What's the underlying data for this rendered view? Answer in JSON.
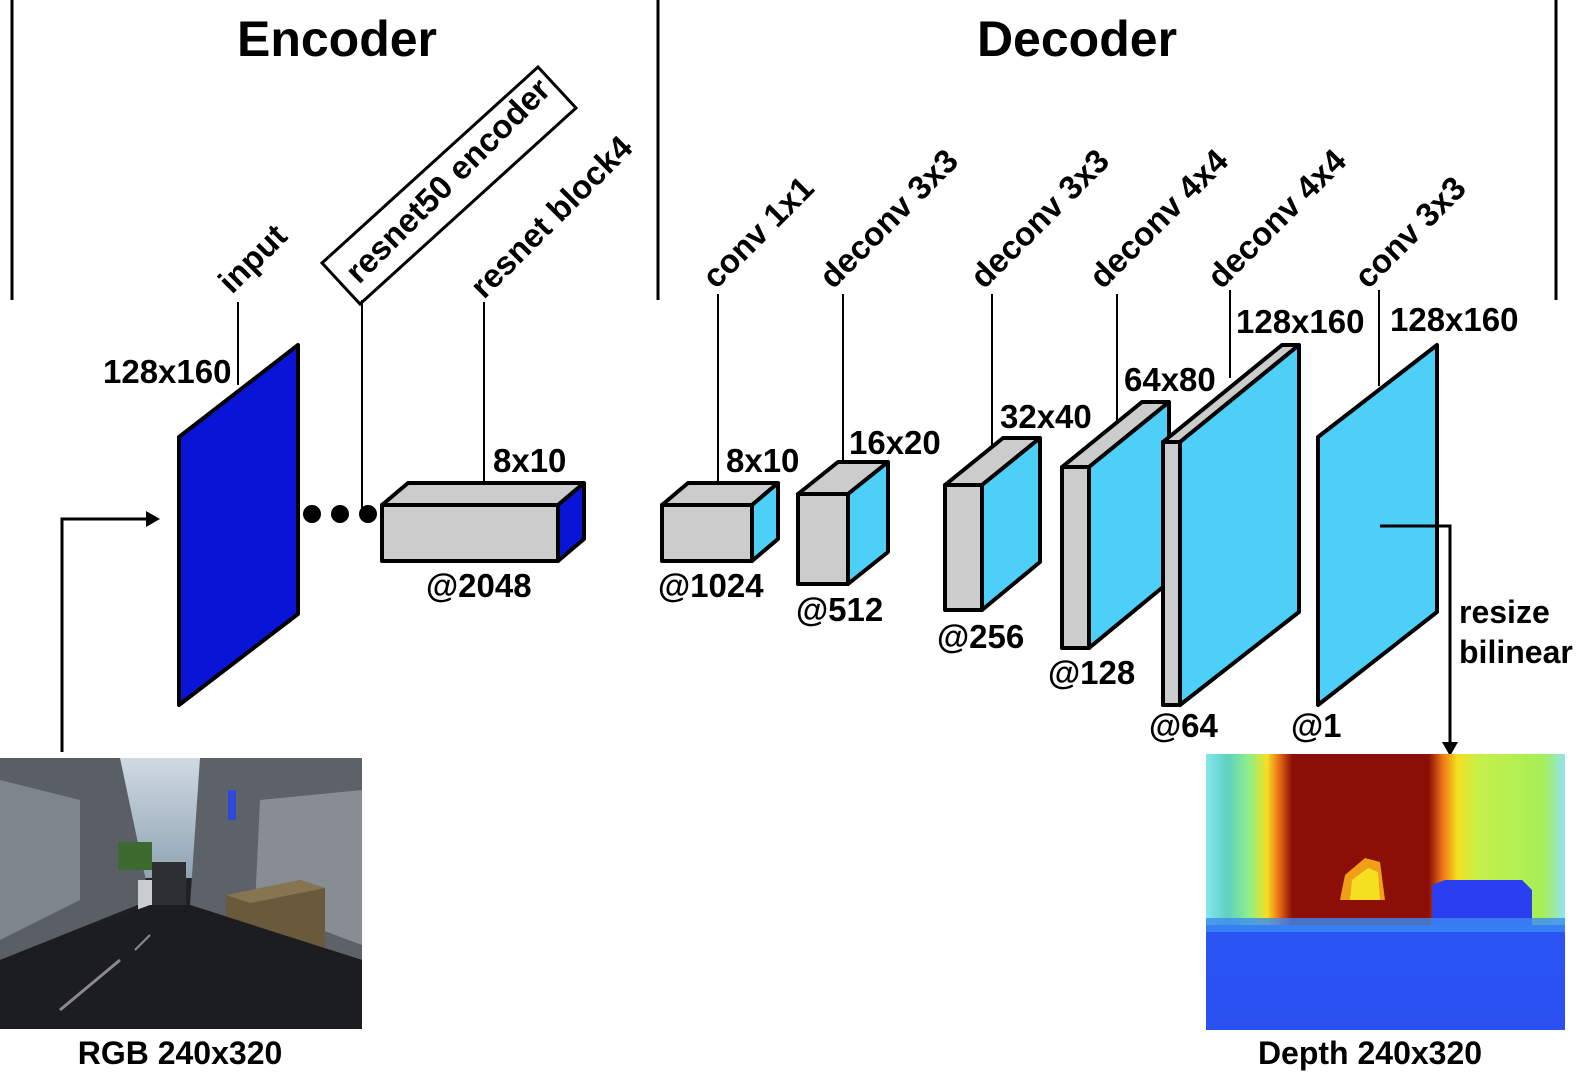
{
  "sections": {
    "encoder": "Encoder",
    "decoder": "Decoder"
  },
  "layers": {
    "input": "input",
    "resnet50_encoder": "resnet50 encoder",
    "resnet_block4": "resnet block4",
    "conv1x1": "conv 1x1",
    "deconv1": "deconv 3x3",
    "deconv2": "deconv 3x3",
    "deconv3": "deconv 4x4",
    "deconv4": "deconv 4x4",
    "conv3x3": "conv 3x3"
  },
  "sizes": {
    "input": "128x160",
    "block4": "8x10",
    "conv1x1": "8x10",
    "deconv1": "16x20",
    "deconv2": "32x40",
    "deconv3": "64x80",
    "deconv4": "128x160",
    "conv3x3": "128x160"
  },
  "channels": {
    "block4": "@2048",
    "conv1x1": "@1024",
    "deconv1": "@512",
    "deconv2": "@256",
    "deconv3": "@128",
    "deconv4": "@64",
    "conv3x3": "@1"
  },
  "resize": {
    "line1": "resize",
    "line2": "bilinear"
  },
  "images": {
    "rgb_caption": "RGB 240x320",
    "depth_caption": "Depth 240x320"
  },
  "colors": {
    "input_blue": "#0a14d6",
    "feature_cyan": "#4dcff7",
    "block_gray": "#cccccc"
  }
}
